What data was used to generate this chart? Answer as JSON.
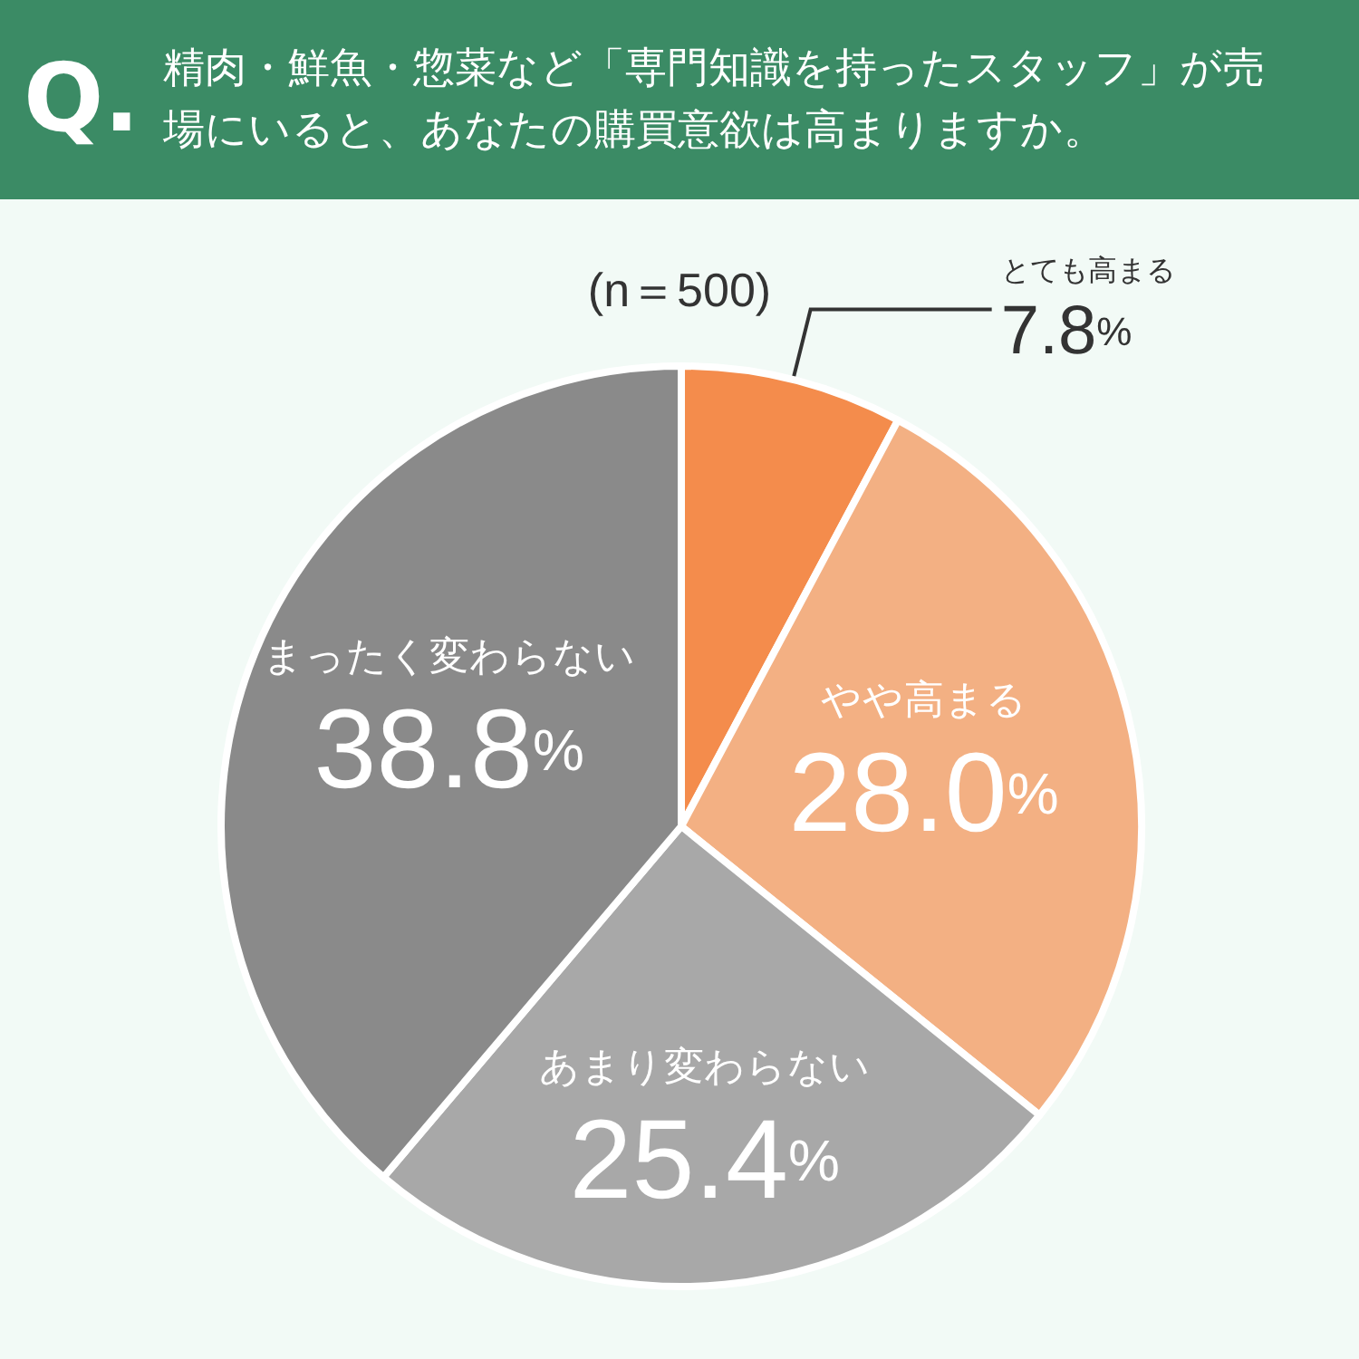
{
  "chart_data": {
    "type": "pie",
    "title": "精肉・鮮魚・惣菜など「専門知識を持ったスタッフ」が売場にいると、あなたの購買意欲は高まりますか。",
    "subtitle": "(n＝500)",
    "annotations": [
      "Q."
    ],
    "categories": [
      "とても高まる",
      "やや高まる",
      "あまり変わらない",
      "まったく変わらない"
    ],
    "values": [
      7.8,
      28.0,
      25.4,
      38.8
    ],
    "value_labels": [
      "7.8%",
      "28.0%",
      "25.4%",
      "38.8%"
    ],
    "colors": [
      "#f48c4c",
      "#f3b083",
      "#a8a8a8",
      "#8a8a8a"
    ]
  }
}
